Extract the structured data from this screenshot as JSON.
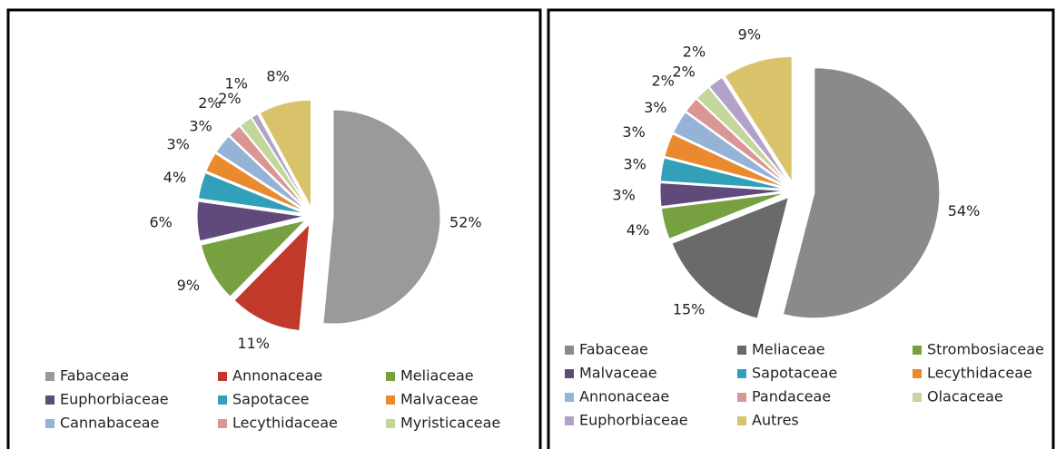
{
  "chart_data": [
    {
      "type": "pie",
      "categories": [
        "Fabaceae",
        "Annonaceae",
        "Meliaceae",
        "Euphorbiaceae",
        "Sapotacee",
        "Malvaceae",
        "Cannabaceae",
        "Lecythidaceae",
        "Myristicaceae",
        null,
        null
      ],
      "values": [
        52,
        11,
        9,
        6,
        4,
        3,
        3,
        2,
        2,
        1,
        8
      ],
      "value_labels": [
        "52%",
        "11%",
        "9%",
        "6%",
        "4%",
        "3%",
        "3%",
        "2%",
        "2%",
        "1%",
        "8%"
      ],
      "colors": [
        "#9a9a9a",
        "#c0392b",
        "#77a040",
        "#604a7b",
        "#31a0b8",
        "#e98a2e",
        "#95b3d7",
        "#d99694",
        "#c3d69b",
        "#b3a2c7",
        "#d9c36a"
      ]
    },
    {
      "type": "pie",
      "categories": [
        "Fabaceae",
        "Meliaceae",
        "Strombosiaceae",
        "Malvaceae",
        "Sapotaceae",
        "Lecythidaceae",
        "Annonaceae",
        "Pandaceae",
        "Olacaceae",
        "Euphorbiaceae",
        "Autres"
      ],
      "values": [
        54,
        15,
        4,
        3,
        3,
        3,
        3,
        2,
        2,
        2,
        9
      ],
      "value_labels": [
        "54%",
        "15%",
        "4%",
        "3%",
        "3%",
        "3%",
        "3%",
        "2%",
        "2%",
        "2%",
        "9%"
      ],
      "colors": [
        "#8a8a8a",
        "#6a6a6a",
        "#77a040",
        "#604a7b",
        "#31a0b8",
        "#e98a2e",
        "#95b3d7",
        "#d99694",
        "#c3d69b",
        "#b3a2c7",
        "#d9c36a"
      ]
    }
  ]
}
